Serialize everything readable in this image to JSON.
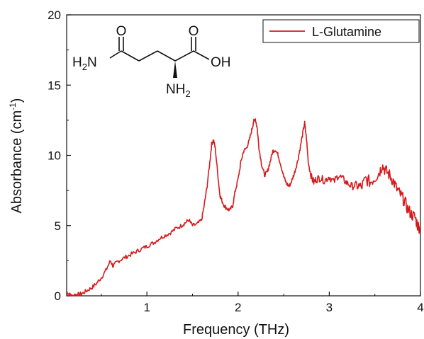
{
  "chart_data": {
    "type": "line",
    "title": "",
    "xlabel": "Frequency (THz)",
    "ylabel": "Absorbance (cm",
    "ylabel_sup": "-1",
    "ylabel_end": ")",
    "xlim": [
      0.12,
      4.0
    ],
    "ylim": [
      0,
      20
    ],
    "x_ticks": [
      1,
      2,
      3,
      4
    ],
    "y_ticks": [
      0,
      5,
      10,
      15,
      20
    ],
    "grid": false,
    "legend": "top-right",
    "series": [
      {
        "name": "L-Glutamine",
        "color": "#d7191c",
        "x": [
          0.12,
          0.15,
          0.18,
          0.22,
          0.26,
          0.3,
          0.35,
          0.4,
          0.45,
          0.5,
          0.55,
          0.6,
          0.63,
          0.67,
          0.72,
          0.78,
          0.84,
          0.9,
          0.96,
          1.02,
          1.08,
          1.14,
          1.2,
          1.26,
          1.32,
          1.38,
          1.42,
          1.46,
          1.5,
          1.55,
          1.6,
          1.63,
          1.66,
          1.69,
          1.71,
          1.73,
          1.75,
          1.78,
          1.8,
          1.82,
          1.85,
          1.88,
          1.91,
          1.94,
          1.97,
          2.0,
          2.03,
          2.06,
          2.09,
          2.12,
          2.15,
          2.17,
          2.19,
          2.21,
          2.23,
          2.26,
          2.29,
          2.32,
          2.35,
          2.38,
          2.41,
          2.44,
          2.47,
          2.5,
          2.53,
          2.56,
          2.59,
          2.62,
          2.65,
          2.68,
          2.71,
          2.73,
          2.75,
          2.77,
          2.8,
          2.83,
          2.86,
          2.9,
          2.95,
          3.0,
          3.05,
          3.1,
          3.15,
          3.2,
          3.25,
          3.3,
          3.35,
          3.4,
          3.45,
          3.5,
          3.55,
          3.58,
          3.62,
          3.66,
          3.7,
          3.74,
          3.78,
          3.82,
          3.86,
          3.9,
          3.94,
          3.97,
          4.0
        ],
        "values": [
          0.3,
          0.1,
          0.0,
          0.1,
          0.1,
          0.2,
          0.4,
          0.6,
          0.9,
          1.3,
          1.8,
          2.5,
          2.1,
          2.4,
          2.6,
          2.8,
          3.0,
          3.2,
          3.4,
          3.6,
          3.8,
          4.1,
          4.3,
          4.5,
          4.8,
          5.0,
          5.2,
          5.4,
          5.0,
          5.1,
          5.4,
          6.5,
          7.8,
          9.5,
          10.8,
          11.1,
          10.5,
          8.5,
          7.2,
          6.8,
          6.4,
          6.2,
          6.1,
          6.4,
          7.5,
          8.3,
          9.5,
          10.3,
          10.5,
          11.0,
          11.8,
          12.4,
          12.6,
          11.9,
          10.5,
          9.3,
          8.6,
          8.8,
          9.5,
          10.3,
          10.4,
          10.0,
          9.3,
          8.5,
          8.0,
          7.8,
          8.2,
          8.8,
          9.5,
          10.5,
          11.6,
          12.3,
          11.2,
          9.5,
          8.5,
          8.1,
          8.3,
          8.4,
          8.2,
          8.5,
          8.1,
          8.6,
          8.3,
          8.0,
          7.8,
          7.9,
          7.7,
          8.3,
          8.1,
          8.4,
          8.8,
          9.3,
          8.9,
          8.6,
          8.2,
          7.6,
          7.2,
          6.8,
          6.2,
          5.8,
          5.6,
          5.0,
          4.8
        ]
      }
    ]
  },
  "molecule": {
    "o_left": "O",
    "o_right": "O",
    "h2n_h": "H",
    "h2n_sub": "2",
    "h2n_n": "N",
    "oh": "OH",
    "nh2_nh": "NH",
    "nh2_sub": "2"
  }
}
